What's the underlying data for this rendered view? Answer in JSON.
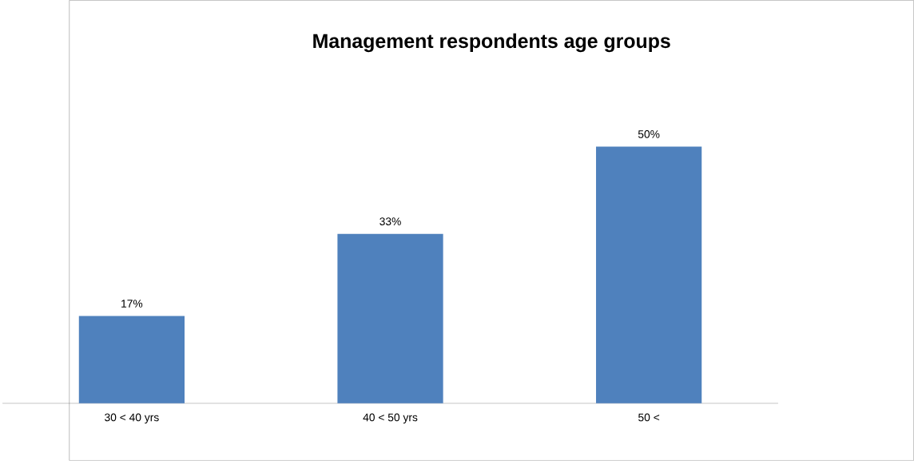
{
  "chart_data": {
    "type": "bar",
    "title": "Management respondents  age groups",
    "categories": [
      "30 < 40 yrs",
      "40 < 50 yrs",
      "50 <"
    ],
    "values": [
      17,
      33,
      50
    ],
    "value_labels": [
      "17%",
      "33%",
      "50%"
    ],
    "color": "#4f81bd"
  }
}
